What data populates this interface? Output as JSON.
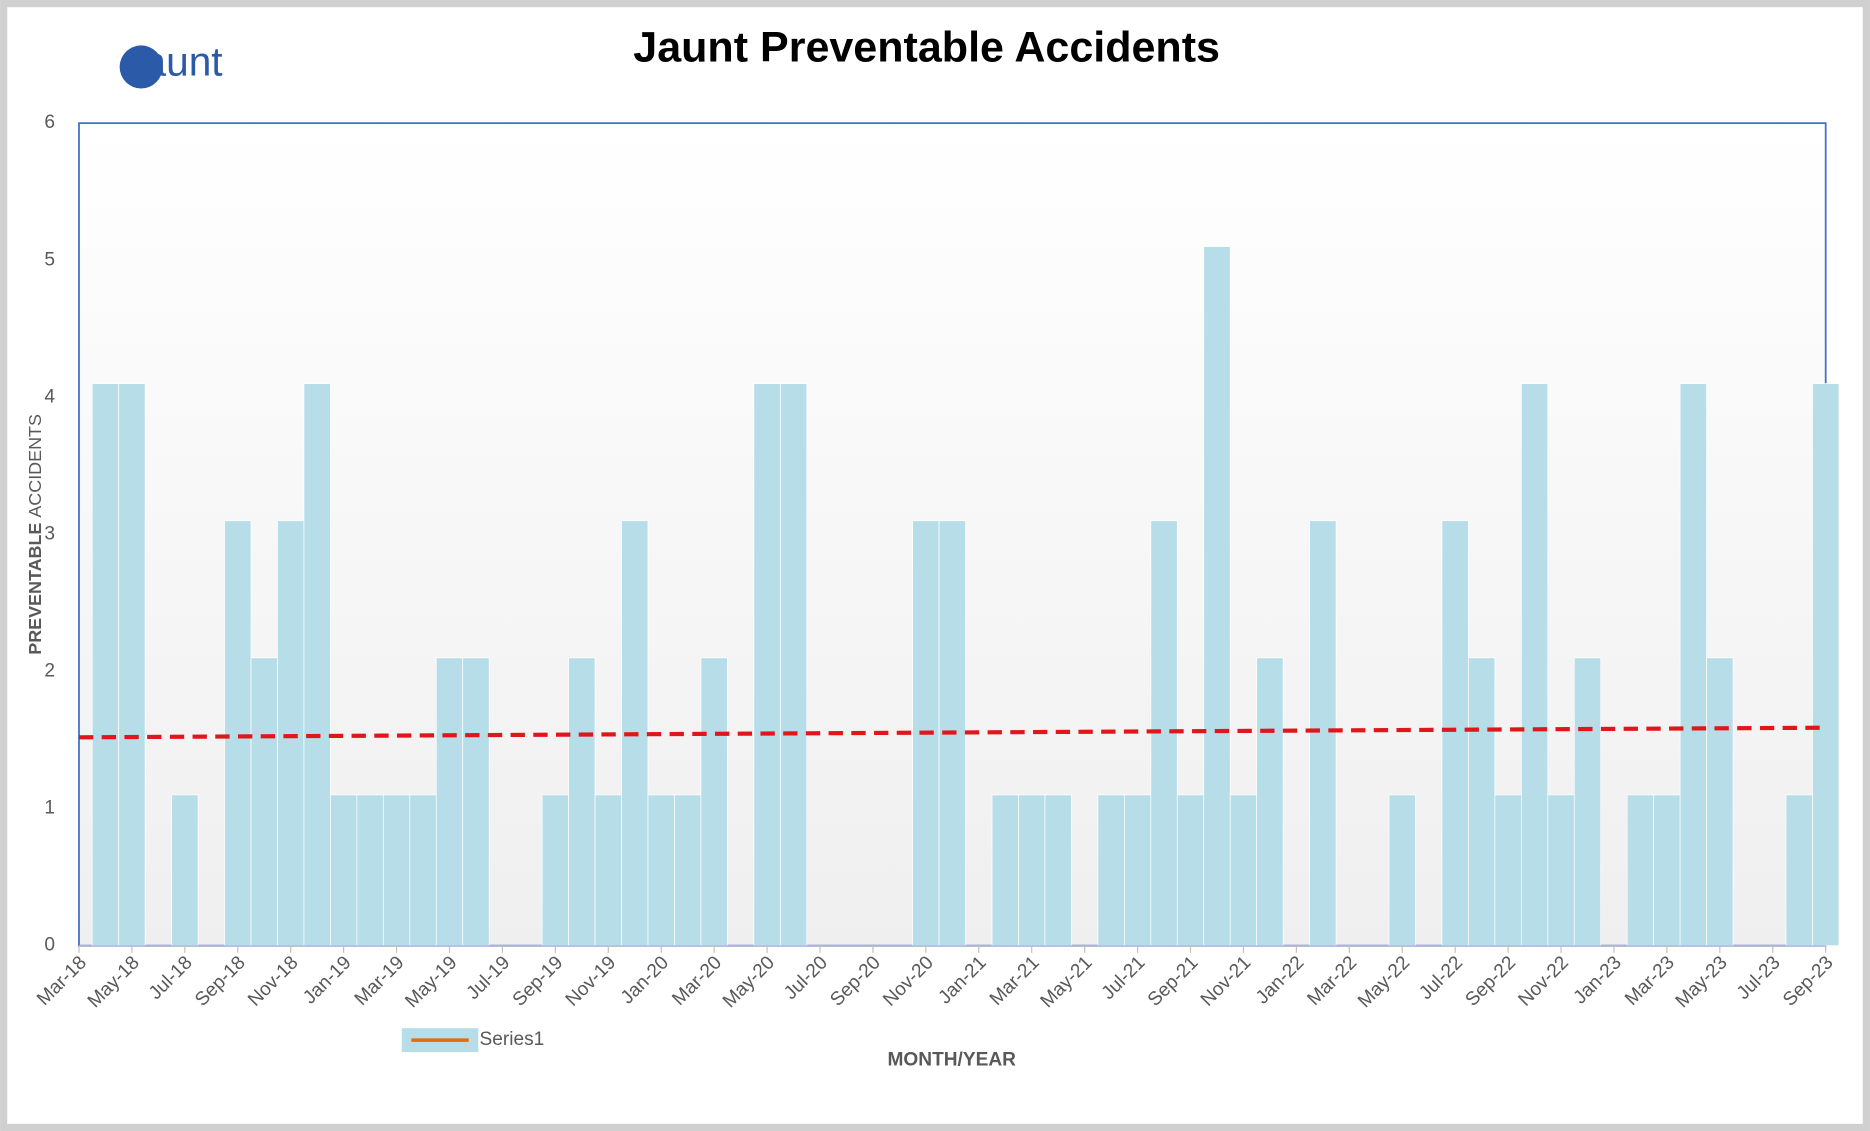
{
  "chart_data": {
    "type": "bar",
    "title": "Jaunt Preventable Accidents",
    "logo": "Jaunt",
    "xlabel": "MONTH/YEAR",
    "ylabel": [
      "PREVENTABLE",
      "ACCIDENTS"
    ],
    "categories": [
      "Mar-18",
      null,
      "May-18",
      null,
      "Jul-18",
      null,
      "Sep-18",
      null,
      "Nov-18",
      null,
      "Jan-19",
      null,
      "Mar-19",
      null,
      "May-19",
      null,
      "Jul-19",
      null,
      "Sep-19",
      null,
      "Nov-19",
      null,
      "Jan-20",
      null,
      "Mar-20",
      null,
      "May-20",
      null,
      "Jul-20",
      null,
      "Sep-20",
      null,
      "Nov-20",
      null,
      "Jan-21",
      null,
      "Mar-21",
      null,
      "May-21",
      null,
      "Jul-21",
      null,
      "Sep-21",
      null,
      "Nov-21",
      null,
      "Jan-22",
      null,
      "Mar-22",
      null,
      "May-22",
      null,
      "Jul-22",
      null,
      "Sep-22",
      null,
      "Nov-22",
      null,
      "Jan-23",
      null,
      "Mar-23",
      null,
      "May-23",
      null,
      "Jul-23",
      null,
      "Sep-23"
    ],
    "series": [
      {
        "name": "Series1",
        "color": "#b7dde8",
        "legend_color": "#e46c0a",
        "values": [
          0,
          4.1,
          4.1,
          0,
          1.1,
          0,
          3.1,
          2.1,
          3.1,
          4.1,
          1.1,
          1.1,
          1.1,
          1.1,
          2.1,
          2.1,
          0,
          0,
          1.1,
          2.1,
          1.1,
          3.1,
          1.1,
          1.1,
          2.1,
          0,
          4.1,
          4.1,
          0,
          0,
          0,
          0,
          3.1,
          3.1,
          0,
          1.1,
          1.1,
          1.1,
          0,
          1.1,
          1.1,
          3.1,
          1.1,
          5.1,
          1.1,
          2.1,
          0,
          3.1,
          0,
          0,
          1.1,
          0,
          3.1,
          2.1,
          1.1,
          4.1,
          1.1,
          2.1,
          0,
          1.1,
          1.1,
          4.1,
          2.1,
          0,
          0,
          1.1,
          4.1
        ]
      }
    ],
    "trendline": {
      "values": [
        1.52,
        1.59
      ],
      "color": "#e0161b"
    },
    "ylim": [
      0,
      6
    ],
    "yticks": [
      0,
      1,
      2,
      3,
      4,
      5,
      6
    ],
    "grid": false
  }
}
